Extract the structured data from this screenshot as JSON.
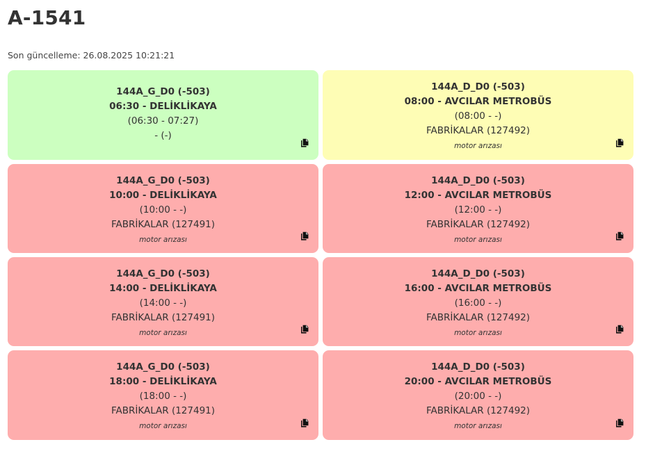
{
  "page": {
    "title": "A-1541",
    "last_updated": "Son güncelleme: 26.08.2025 10:21:21"
  },
  "icons": {
    "copy": "copy-icon"
  },
  "colors": {
    "green": "#ccffc0",
    "yellow": "#fefdb5",
    "red": "#feadad"
  },
  "cards": [
    {
      "status": "green",
      "line": "144A_G_D0 (-503)",
      "departure": "06:30 - DELİKLİKAYA",
      "time_range": "(06:30 - 07:27)",
      "garage": "- (-)",
      "note": ""
    },
    {
      "status": "yellow",
      "line": "144A_D_D0 (-503)",
      "departure": "08:00 - AVCILAR METROBÜS",
      "time_range": "(08:00 - -)",
      "garage": "FABRİKALAR (127492)",
      "note": "motor arızası"
    },
    {
      "status": "red",
      "line": "144A_G_D0 (-503)",
      "departure": "10:00 - DELİKLİKAYA",
      "time_range": "(10:00 - -)",
      "garage": "FABRİKALAR (127491)",
      "note": "motor arızası"
    },
    {
      "status": "red",
      "line": "144A_D_D0 (-503)",
      "departure": "12:00 - AVCILAR METROBÜS",
      "time_range": "(12:00 - -)",
      "garage": "FABRİKALAR (127492)",
      "note": "motor arızası"
    },
    {
      "status": "red",
      "line": "144A_G_D0 (-503)",
      "departure": "14:00 - DELİKLİKAYA",
      "time_range": "(14:00 - -)",
      "garage": "FABRİKALAR (127491)",
      "note": "motor arızası"
    },
    {
      "status": "red",
      "line": "144A_D_D0 (-503)",
      "departure": "16:00 - AVCILAR METROBÜS",
      "time_range": "(16:00 - -)",
      "garage": "FABRİKALAR (127492)",
      "note": "motor arızası"
    },
    {
      "status": "red",
      "line": "144A_G_D0 (-503)",
      "departure": "18:00 - DELİKLİKAYA",
      "time_range": "(18:00 - -)",
      "garage": "FABRİKALAR (127491)",
      "note": "motor arızası"
    },
    {
      "status": "red",
      "line": "144A_D_D0 (-503)",
      "departure": "20:00 - AVCILAR METROBÜS",
      "time_range": "(20:00 - -)",
      "garage": "FABRİKALAR (127492)",
      "note": "motor arızası"
    }
  ]
}
